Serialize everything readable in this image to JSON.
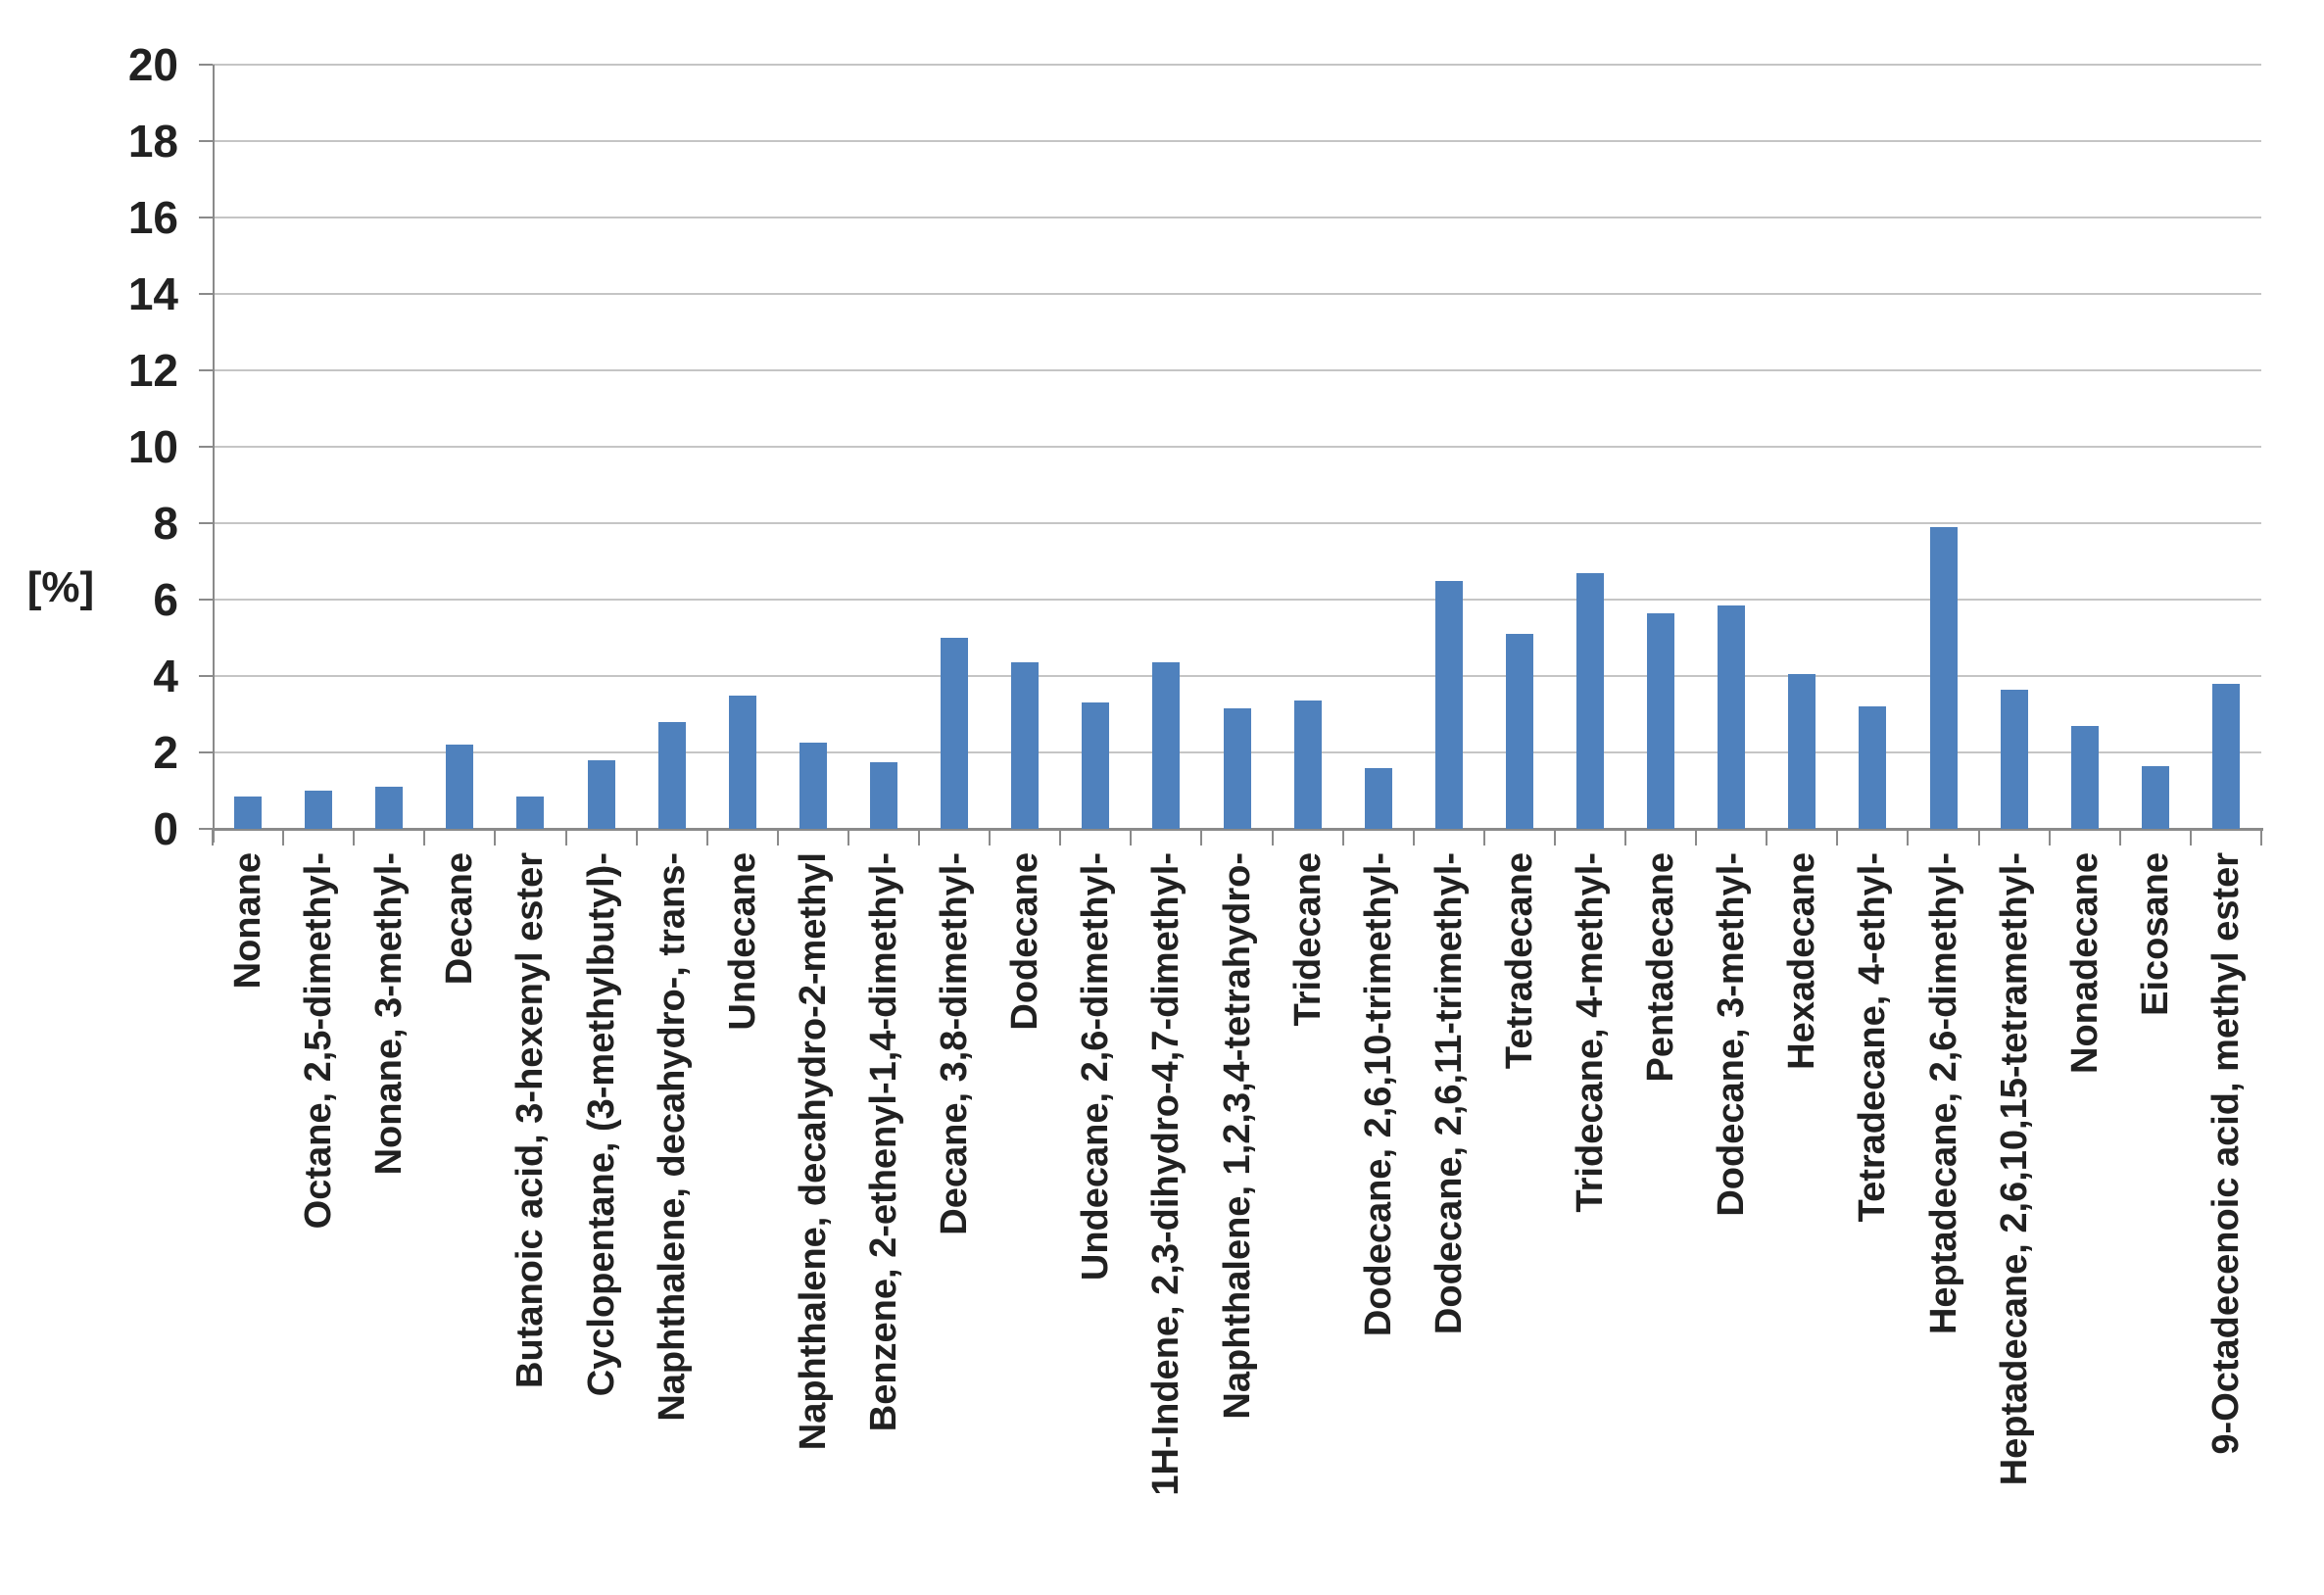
{
  "chart_data": {
    "type": "bar",
    "title": "",
    "xlabel": "",
    "ylabel": "[%]",
    "ylim": [
      0,
      20
    ],
    "ytick_step": 2,
    "yticks": [
      0,
      2,
      4,
      6,
      8,
      10,
      12,
      14,
      16,
      18,
      20
    ],
    "grid": true,
    "legend": false,
    "categories": [
      "Nonane",
      "Octane, 2,5-dimethyl-",
      "Nonane, 3-methyl-",
      "Decane",
      "Butanoic acid, 3-hexenyl ester",
      "Cyclopentane, (3-methylbutyl)-",
      "Naphthalene, decahydro-, trans-",
      "Undecane",
      "Naphthalene, decahydro-2-methyl",
      "Benzene, 2-ethenyl-1,4-dimethyl-",
      "Decane, 3,8-dimethyl-",
      "Dodecane",
      "Undecane, 2,6-dimethyl-",
      "1H-Indene, 2,3-dihydro-4,7-dimethyl-",
      "Naphthalene, 1,2,3,4-tetrahydro-",
      "Tridecane",
      "Dodecane, 2,6,10-trimethyl-",
      "Dodecane, 2,6,11-trimethyl-",
      "Tetradecane",
      "Tridecane, 4-methyl-",
      "Pentadecane",
      "Dodecane, 3-methyl-",
      "Hexadecane",
      "Tetradecane, 4-ethyl-",
      "Heptadecane, 2,6-dimethyl-",
      "Heptadecane, 2,6,10,15-tetramethyl-",
      "Nonadecane",
      "Eicosane",
      "9-Octadecenoic acid, methyl ester"
    ],
    "values": [
      0.85,
      1.0,
      1.1,
      2.2,
      0.85,
      1.8,
      2.8,
      3.5,
      2.25,
      1.75,
      5.0,
      4.35,
      3.3,
      4.35,
      3.15,
      3.35,
      1.6,
      6.5,
      5.1,
      6.7,
      5.65,
      5.85,
      4.05,
      3.2,
      7.9,
      3.65,
      2.7,
      1.65,
      3.8
    ],
    "bar_color": "#4F81BD",
    "gridline_color": "#C5C5C5",
    "axis_color": "#8A8A8A",
    "text_color": "#212121",
    "background_color": "#FFFFFF"
  }
}
